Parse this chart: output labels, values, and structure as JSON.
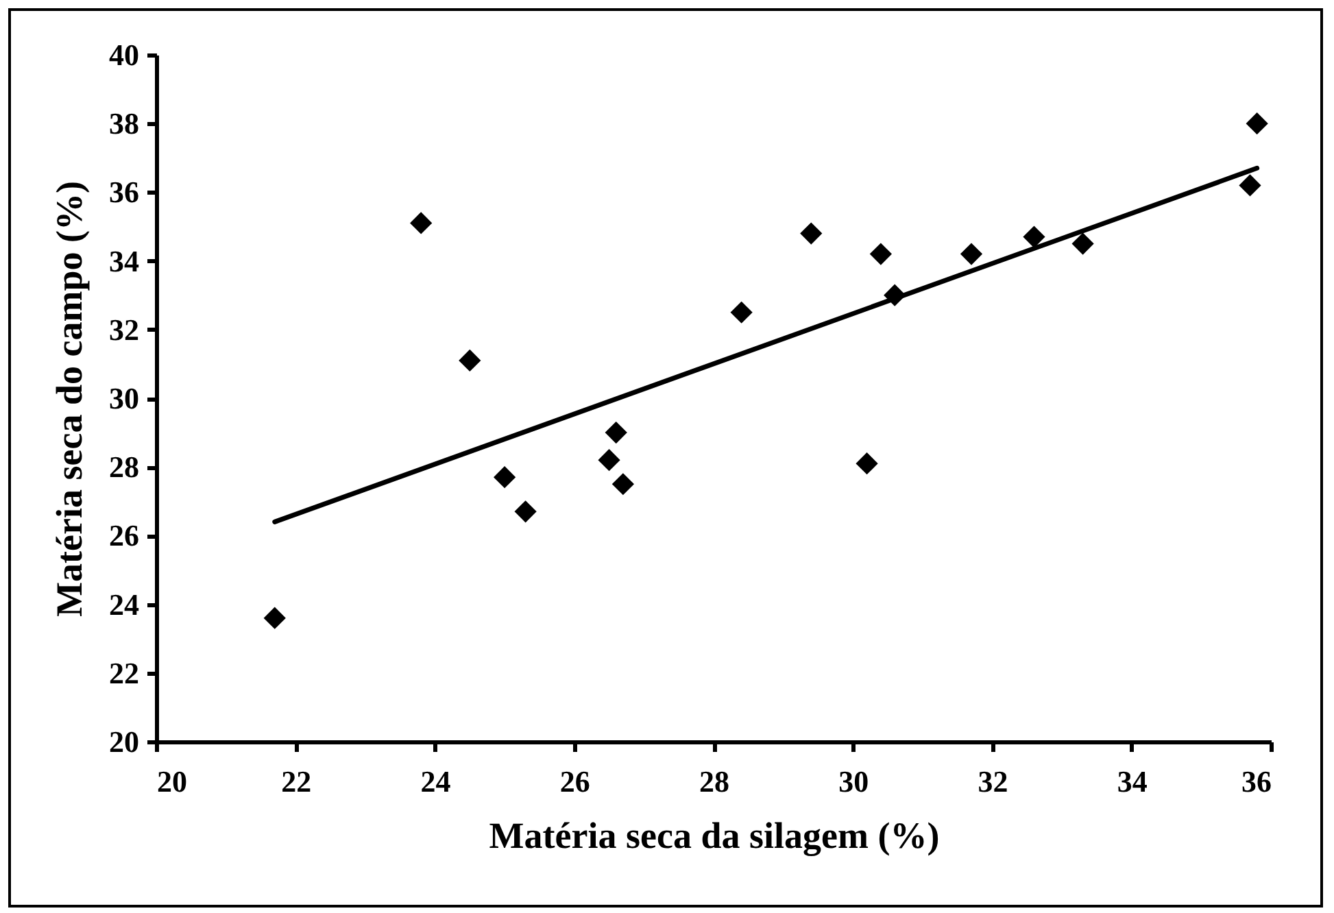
{
  "chart_data": {
    "type": "scatter",
    "xlabel": "Matéria seca da silagem (%)",
    "ylabel": "Matéria seca do campo (%)",
    "xlim": [
      20,
      36
    ],
    "xticks": [
      20,
      22,
      24,
      26,
      28,
      30,
      32,
      34,
      36
    ],
    "ylim": [
      20,
      40
    ],
    "yticks": [
      20,
      22,
      24,
      26,
      28,
      30,
      32,
      34,
      36,
      38,
      40
    ],
    "grid": false,
    "marker": "diamond",
    "series": [
      {
        "color": "#000000",
        "x": [
          21.7,
          23.8,
          24.5,
          25.0,
          25.3,
          26.6,
          26.5,
          26.7,
          28.4,
          29.4,
          30.4,
          30.2,
          30.6,
          31.7,
          32.6,
          33.3,
          35.8,
          35.7
        ],
        "values": [
          23.6,
          35.1,
          31.1,
          27.7,
          26.7,
          29.0,
          28.2,
          27.5,
          32.5,
          34.8,
          34.2,
          28.1,
          33.0,
          34.2,
          34.7,
          34.5,
          38.0,
          36.2
        ]
      },
      {
        "type": "line",
        "color": "#000000",
        "line_style": "solid",
        "marker": "none",
        "x": [
          21.7,
          35.8
        ],
        "values": [
          26.4,
          36.7
        ]
      }
    ]
  }
}
